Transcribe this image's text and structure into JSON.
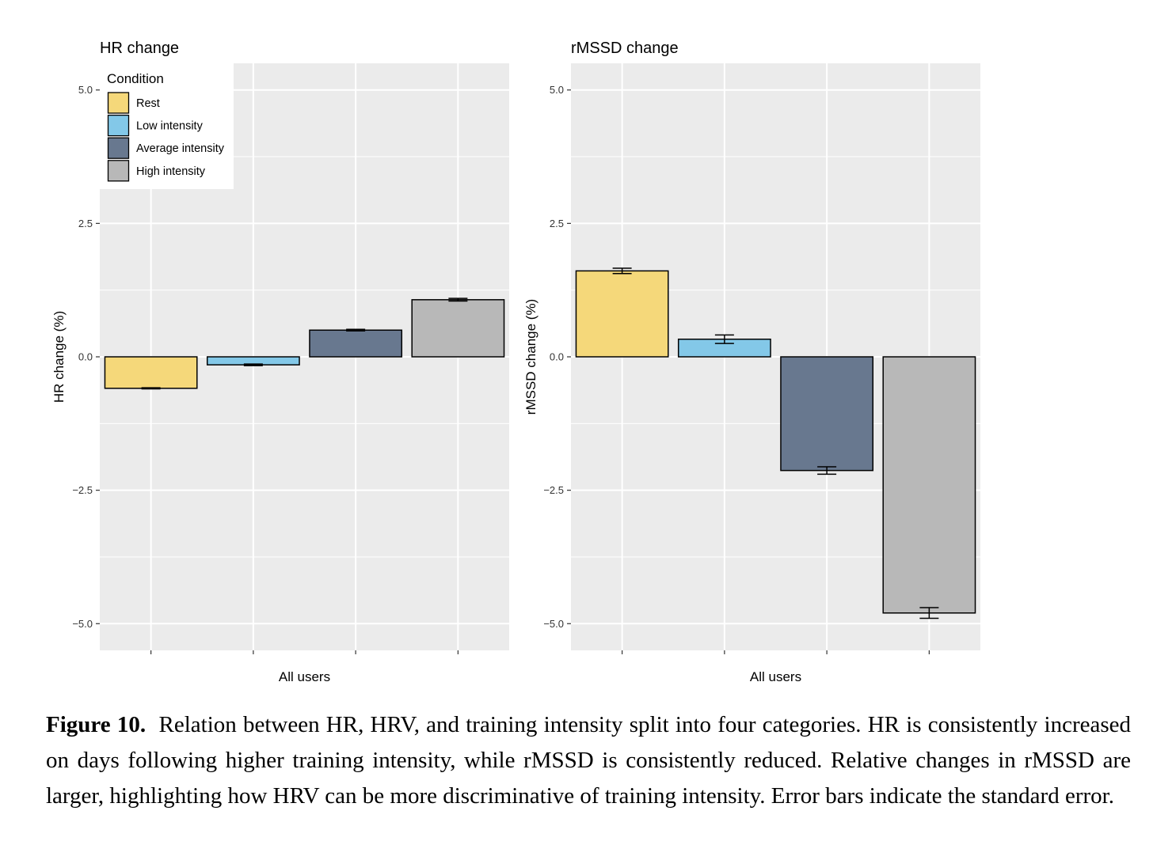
{
  "chart_data": [
    {
      "type": "bar",
      "title": "HR change",
      "xlabel": "All users",
      "ylabel": "HR change (%)",
      "ylim": [
        -5.5,
        5.5
      ],
      "yticks": [
        "5.0",
        "2.5",
        "0.0",
        "−2.5",
        "−5.0"
      ],
      "ytick_values": [
        5.0,
        2.5,
        0.0,
        -2.5,
        -5.0
      ],
      "grid": true,
      "categories": [
        "Rest",
        "Low intensity",
        "Average intensity",
        "High intensity"
      ],
      "values": [
        -0.59,
        -0.15,
        0.5,
        1.07
      ],
      "errors": [
        0.01,
        0.015,
        0.015,
        0.025
      ],
      "legend": {
        "title": "Condition",
        "placement": "top-left",
        "entries": [
          "Rest",
          "Low intensity",
          "Average intensity",
          "High intensity"
        ]
      }
    },
    {
      "type": "bar",
      "title": "rMSSD change",
      "xlabel": "All users",
      "ylabel": "rMSSD change (%)",
      "ylim": [
        -5.5,
        5.5
      ],
      "yticks": [
        "5.0",
        "2.5",
        "0.0",
        "−2.5",
        "−5.0"
      ],
      "ytick_values": [
        5.0,
        2.5,
        0.0,
        -2.5,
        -5.0
      ],
      "grid": true,
      "categories": [
        "Rest",
        "Low intensity",
        "Average intensity",
        "High intensity"
      ],
      "values": [
        1.61,
        0.33,
        -2.13,
        -4.8
      ],
      "errors": [
        0.05,
        0.08,
        0.07,
        0.1
      ]
    }
  ],
  "colors": {
    "Rest": "#f5d87a",
    "Low intensity": "#83c8e8",
    "Average intensity": "#68788f",
    "High intensity": "#b8b8b8",
    "panel": "#ebebeb",
    "grid": "#ffffff"
  },
  "caption": {
    "label": "Figure 10.",
    "text": "Relation between HR, HRV, and training intensity split into four categories. HR is consistently increased on days following higher training intensity, while rMSSD is consistently reduced. Relative changes in rMSSD are larger, highlighting how HRV can be more discriminative of training intensity. Error bars indicate the standard error."
  }
}
